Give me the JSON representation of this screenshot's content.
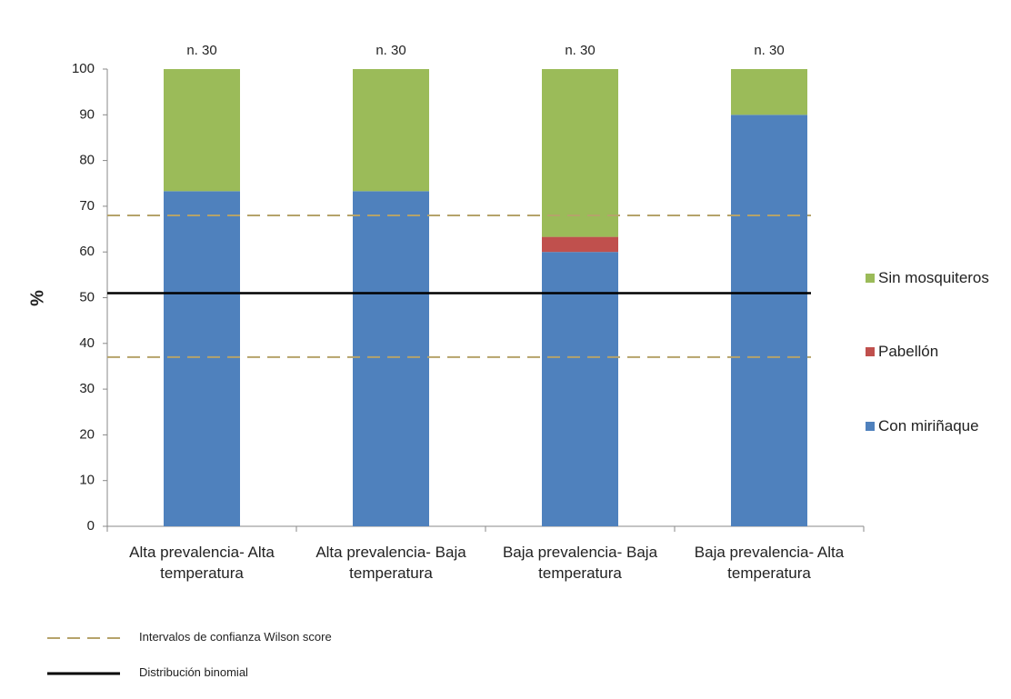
{
  "chart_data": {
    "type": "stacked_bar",
    "y_label": "%",
    "categories": [
      "Alta prevalencia- Alta temperatura",
      "Alta prevalencia- Baja temperatura",
      "Baja prevalencia- Baja temperatura",
      "Baja prevalencia- Alta temperatura"
    ],
    "annotations": [
      "n. 30",
      "n. 30",
      "n. 30",
      "n. 30"
    ],
    "series": [
      {
        "name": "Con miriñaque",
        "color": "#4f81bd",
        "values": [
          73.3,
          73.3,
          60,
          90
        ]
      },
      {
        "name": "Pabellón",
        "color": "#c0504d",
        "values": [
          0,
          0,
          3.3,
          0
        ]
      },
      {
        "name": "Sin mosquiteros",
        "color": "#9bbb59",
        "values": [
          26.7,
          26.7,
          36.7,
          10
        ]
      }
    ],
    "reference_lines": [
      {
        "name": "Intervalos de confianza Wilson score",
        "color": "#b5a36a",
        "style": "dashed",
        "values": [
          68,
          37
        ]
      },
      {
        "name": "Distribución binomial",
        "color": "#000000",
        "style": "solid",
        "values": [
          51
        ]
      }
    ],
    "ylim": [
      0,
      100
    ],
    "yticks": [
      0,
      10,
      20,
      30,
      40,
      50,
      60,
      70,
      80,
      90,
      100
    ],
    "legend": "right"
  }
}
